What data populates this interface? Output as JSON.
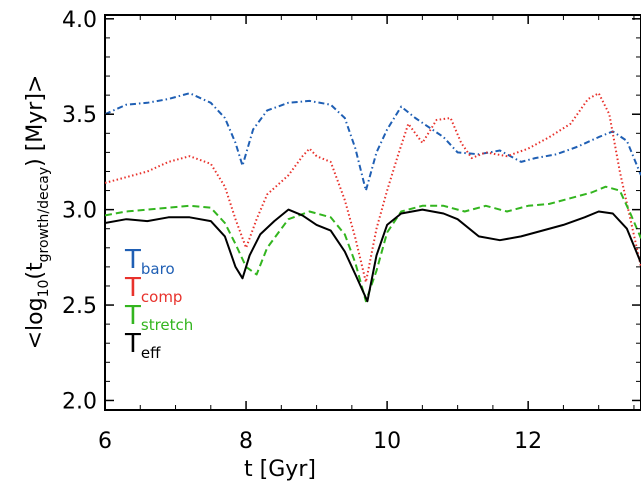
{
  "chart_data": {
    "type": "line",
    "xlabel": "t [Gyr]",
    "ylabel": {
      "prefix": "<log",
      "sub1": "10",
      "mid": "(t",
      "sub2": "growth/decay",
      "suffix": ")  [Myr]>"
    },
    "xlim": [
      6,
      13.6
    ],
    "ylim": [
      1.95,
      4.02
    ],
    "x_ticks": [
      6,
      8,
      10,
      12
    ],
    "y_ticks": [
      2.0,
      2.5,
      3.0,
      3.5,
      4.0
    ],
    "x_tick_labels": [
      "6",
      "8",
      "10",
      "12"
    ],
    "y_tick_labels": [
      "2.0",
      "2.5",
      "3.0",
      "3.5",
      "4.0"
    ],
    "grid": false,
    "legend_position": "lower-left",
    "series": [
      {
        "name": "T_baro",
        "label_main": "T",
        "label_sub": "baro",
        "color": "#1f5fb4",
        "style": "dashdot",
        "x": [
          6.0,
          6.3,
          6.6,
          6.9,
          7.2,
          7.5,
          7.7,
          7.85,
          7.95,
          8.1,
          8.3,
          8.6,
          8.9,
          9.2,
          9.4,
          9.55,
          9.7,
          9.85,
          10.0,
          10.2,
          10.4,
          10.6,
          10.8,
          11.0,
          11.3,
          11.6,
          11.9,
          12.1,
          12.4,
          12.7,
          13.0,
          13.2,
          13.4,
          13.6
        ],
        "y": [
          3.5,
          3.55,
          3.56,
          3.58,
          3.61,
          3.56,
          3.48,
          3.35,
          3.23,
          3.42,
          3.52,
          3.56,
          3.57,
          3.55,
          3.48,
          3.32,
          3.1,
          3.3,
          3.42,
          3.54,
          3.48,
          3.43,
          3.38,
          3.3,
          3.29,
          3.31,
          3.25,
          3.27,
          3.29,
          3.33,
          3.38,
          3.41,
          3.36,
          3.18
        ]
      },
      {
        "name": "T_comp",
        "label_main": "T",
        "label_sub": "comp",
        "color": "#e8322c",
        "style": "dotted",
        "x": [
          6.0,
          6.3,
          6.6,
          6.9,
          7.2,
          7.5,
          7.7,
          7.85,
          8.0,
          8.15,
          8.3,
          8.6,
          8.8,
          8.9,
          9.0,
          9.2,
          9.4,
          9.55,
          9.7,
          9.85,
          10.0,
          10.15,
          10.3,
          10.5,
          10.7,
          10.9,
          11.05,
          11.2,
          11.4,
          11.7,
          12.0,
          12.3,
          12.6,
          12.85,
          13.0,
          13.15,
          13.3,
          13.45,
          13.6
        ],
        "y": [
          3.14,
          3.17,
          3.2,
          3.25,
          3.28,
          3.24,
          3.12,
          2.95,
          2.8,
          2.95,
          3.08,
          3.18,
          3.28,
          3.32,
          3.28,
          3.25,
          3.05,
          2.85,
          2.62,
          2.9,
          3.1,
          3.28,
          3.45,
          3.35,
          3.47,
          3.48,
          3.35,
          3.27,
          3.3,
          3.28,
          3.32,
          3.38,
          3.45,
          3.58,
          3.61,
          3.5,
          3.2,
          2.95,
          2.7
        ]
      },
      {
        "name": "T_stretch",
        "label_main": "T",
        "label_sub": "stretch",
        "color": "#33b51f",
        "style": "dashed",
        "x": [
          6.0,
          6.3,
          6.6,
          6.9,
          7.2,
          7.5,
          7.7,
          7.85,
          8.0,
          8.15,
          8.3,
          8.6,
          8.9,
          9.2,
          9.4,
          9.55,
          9.7,
          9.85,
          10.0,
          10.2,
          10.5,
          10.8,
          11.1,
          11.4,
          11.7,
          12.0,
          12.3,
          12.6,
          12.9,
          13.1,
          13.3,
          13.45,
          13.6
        ],
        "y": [
          2.97,
          2.99,
          3.0,
          3.01,
          3.02,
          3.01,
          2.93,
          2.82,
          2.7,
          2.66,
          2.8,
          2.95,
          2.99,
          2.96,
          2.87,
          2.72,
          2.52,
          2.68,
          2.88,
          2.99,
          3.02,
          3.02,
          2.99,
          3.02,
          2.99,
          3.02,
          3.03,
          3.06,
          3.09,
          3.12,
          3.1,
          2.98,
          2.85
        ]
      },
      {
        "name": "T_eff",
        "label_main": "T",
        "label_sub": "eff",
        "color": "#000000",
        "style": "solid",
        "x": [
          6.0,
          6.3,
          6.6,
          6.9,
          7.2,
          7.5,
          7.7,
          7.85,
          7.95,
          8.05,
          8.2,
          8.4,
          8.6,
          8.8,
          9.0,
          9.2,
          9.4,
          9.55,
          9.72,
          9.85,
          10.0,
          10.2,
          10.5,
          10.8,
          11.0,
          11.3,
          11.6,
          11.9,
          12.2,
          12.5,
          12.8,
          13.0,
          13.2,
          13.4,
          13.6
        ],
        "y": [
          2.93,
          2.95,
          2.94,
          2.96,
          2.96,
          2.94,
          2.86,
          2.7,
          2.64,
          2.76,
          2.87,
          2.94,
          3.0,
          2.97,
          2.92,
          2.89,
          2.78,
          2.66,
          2.52,
          2.76,
          2.92,
          2.98,
          3.0,
          2.98,
          2.95,
          2.86,
          2.84,
          2.86,
          2.89,
          2.92,
          2.96,
          2.99,
          2.98,
          2.9,
          2.72
        ]
      }
    ]
  }
}
